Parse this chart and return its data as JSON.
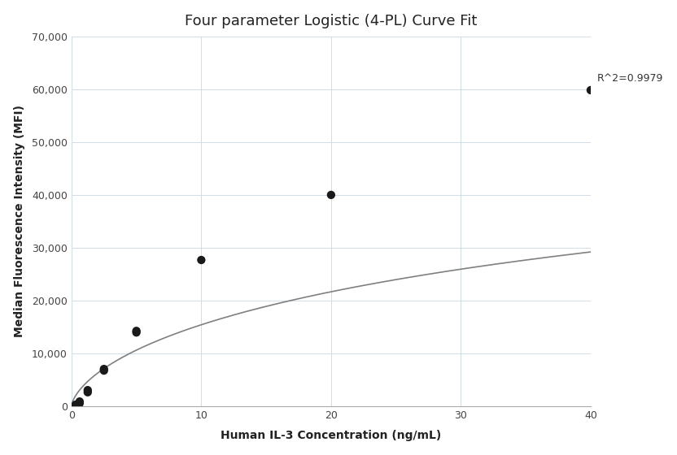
{
  "title": "Four parameter Logistic (4-PL) Curve Fit",
  "xlabel": "Human IL-3 Concentration (ng/mL)",
  "ylabel": "Median Fluorescence Intensity (MFI)",
  "scatter_x": [
    0.313,
    0.313,
    0.625,
    0.625,
    1.25,
    1.25,
    2.5,
    2.5,
    5.0,
    5.0,
    10.0,
    20.0,
    40.0
  ],
  "scatter_y": [
    150,
    350,
    600,
    950,
    2700,
    3100,
    6800,
    7100,
    14000,
    14300,
    27700,
    40000,
    59800
  ],
  "r_squared": "R^2=0.9979",
  "xlim": [
    0,
    40
  ],
  "ylim": [
    0,
    70000
  ],
  "xticks": [
    0,
    10,
    20,
    30,
    40
  ],
  "yticks": [
    0,
    10000,
    20000,
    30000,
    40000,
    50000,
    60000,
    70000
  ],
  "scatter_color": "#1a1a1a",
  "line_color": "#808080",
  "grid_color": "#d0dce8",
  "background_color": "#ffffff",
  "title_fontsize": 13,
  "label_fontsize": 10,
  "tick_fontsize": 9,
  "annotation_fontsize": 9,
  "scatter_size": 55,
  "figsize": [
    8.32,
    5.6
  ],
  "dpi": 100,
  "4pl_params": [
    50,
    0.65,
    80,
    75000
  ]
}
